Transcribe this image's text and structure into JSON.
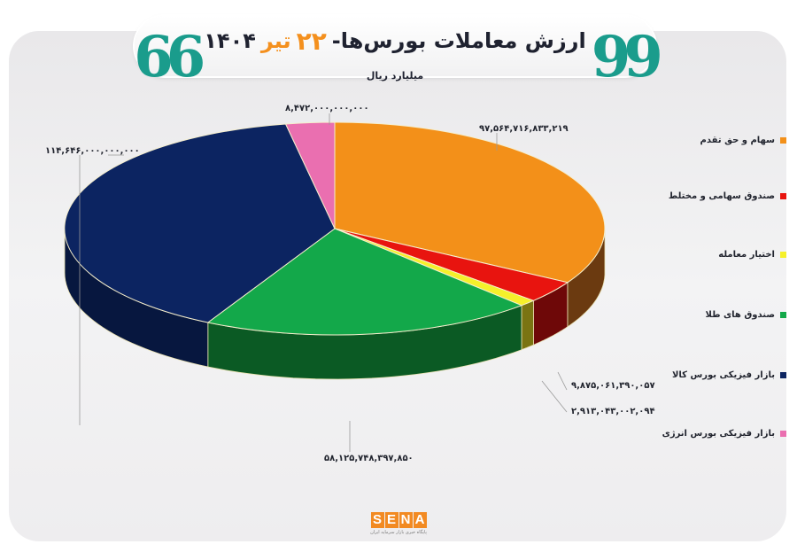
{
  "header": {
    "quote_open": "❞",
    "quote_close": "❝",
    "title": "ارزش معاملات بورس‌ها-",
    "day": "۲۲",
    "month": "تیر",
    "year": "۱۴۰۴",
    "unit": "میلیارد ریال"
  },
  "colors": {
    "accent_teal": "#1a9c8c",
    "accent_orange": "#f4901e"
  },
  "legend": [
    {
      "label": "سهام و حق تقدم",
      "color": "#f39019"
    },
    {
      "label": "صندوق سهامی و مختلط",
      "color": "#e8140f"
    },
    {
      "label": "اختیار معامله",
      "color": "#f5f02a"
    },
    {
      "label": "صندوق های طلا",
      "color": "#13a84a"
    },
    {
      "label": "بازار فیزیکی بورس کالا",
      "color": "#0c2461"
    },
    {
      "label": "بازار فیزیکی بورس انرژی",
      "color": "#ea6fb0"
    }
  ],
  "value_labels": {
    "stocks": "۹۷,۵۶۴,۷۱۶,۸۳۳,۲۱۹",
    "mixed_funds": "۹,۸۷۵,۰۶۱,۳۹۰,۰۵۷",
    "options": "۲,۹۱۳,۰۴۳,۰۰۲,۰۹۴",
    "gold_funds": "۵۸,۱۲۵,۷۴۸,۳۹۷,۸۵۰",
    "commodity": "۱۱۴,۶۴۶,۰۰۰,۰۰۰,۰۰۰",
    "energy": "۸,۴۷۲,۰۰۰,۰۰۰,۰۰۰"
  },
  "logo": {
    "letters": [
      "S",
      "E",
      "N",
      "A"
    ],
    "tagline": "پایگاه خبری بازار سرمایه ایران"
  },
  "chart_data": {
    "type": "pie",
    "title": "ارزش معاملات بورس‌ها- ۲۲ تیر ۱۴۰۴",
    "subtitle": "میلیارد ریال",
    "categories": [
      "سهام و حق تقدم",
      "صندوق سهامی و مختلط",
      "اختیار معامله",
      "صندوق های طلا",
      "بازار فیزیکی بورس کالا",
      "بازار فیزیکی بورس انرژی"
    ],
    "values": [
      97564716833219,
      9875061390057,
      2913043002094,
      58125748397850,
      114646000000000,
      8472000000000
    ],
    "colors": [
      "#f39019",
      "#e8140f",
      "#f5f02a",
      "#13a84a",
      "#0c2461",
      "#ea6fb0"
    ],
    "side_colors": [
      "#6b3a10",
      "#6e0808",
      "#7a7412",
      "#0b5a24",
      "#07173f",
      "#8f3d69"
    ],
    "style": "3d",
    "legend_position": "right",
    "start_angle_deg": 0,
    "direction": "clockwise"
  }
}
